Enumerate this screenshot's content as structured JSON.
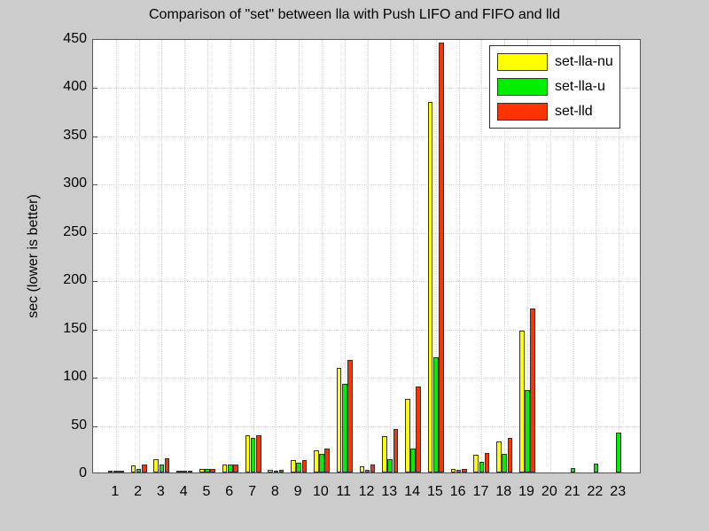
{
  "chart_data": {
    "type": "bar",
    "title": "Comparison of \"set\" between lla with Push LIFO and FIFO and lld",
    "xlabel": "",
    "ylabel": "sec (lower is better)",
    "ylim": [
      0,
      450
    ],
    "xlim": [
      0,
      24
    ],
    "yticks": [
      0,
      50,
      100,
      150,
      200,
      250,
      300,
      350,
      400,
      450
    ],
    "grid": true,
    "legend_position": "upper right",
    "categories": [
      "1",
      "2",
      "3",
      "4",
      "5",
      "6",
      "7",
      "8",
      "9",
      "10",
      "11",
      "12",
      "13",
      "14",
      "15",
      "16",
      "17",
      "18",
      "19",
      "20",
      "21",
      "22",
      "23"
    ],
    "series": [
      {
        "name": "set-lla-nu",
        "color": "#ffff00",
        "values": [
          1,
          7,
          14,
          1,
          4,
          8,
          39,
          3,
          13,
          23,
          108,
          6,
          38,
          76,
          384,
          4,
          18,
          32,
          147,
          0,
          0,
          0,
          0
        ]
      },
      {
        "name": "set-lla-u",
        "color": "#00ee00",
        "values": [
          1,
          4,
          8,
          1,
          4,
          8,
          36,
          2,
          10,
          19,
          92,
          3,
          14,
          25,
          119,
          3,
          11,
          19,
          85,
          0,
          5,
          9,
          41
        ]
      },
      {
        "name": "set-lld",
        "color": "#ff3300",
        "values": [
          1,
          8,
          15,
          1,
          4,
          8,
          39,
          3,
          13,
          25,
          117,
          8,
          45,
          89,
          445,
          4,
          20,
          36,
          170,
          0,
          0,
          0,
          0
        ]
      }
    ]
  }
}
